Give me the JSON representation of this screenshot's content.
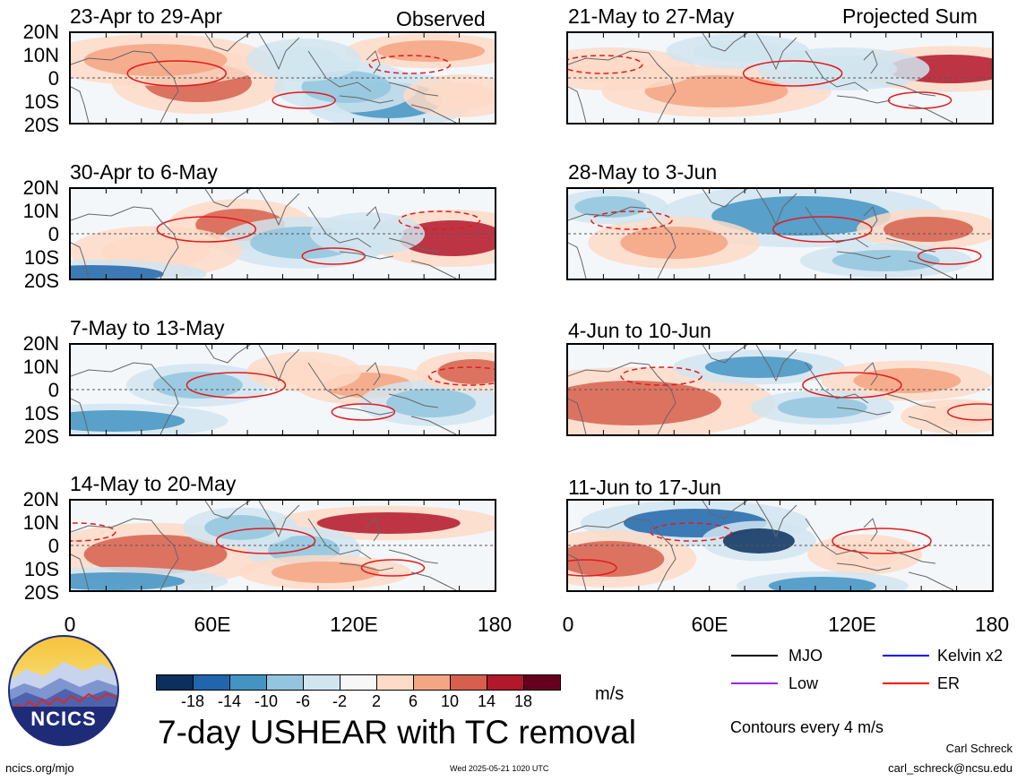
{
  "panels": {
    "observed": [
      {
        "title": "23-Apr to 29-Apr",
        "tag": "Observed"
      },
      {
        "title": "30-Apr to 6-May"
      },
      {
        "title": "7-May to 13-May"
      },
      {
        "title": "14-May to 20-May"
      }
    ],
    "projected": [
      {
        "title": "21-May to 27-May",
        "tag": "Projected Sum"
      },
      {
        "title": "28-May to 3-Jun"
      },
      {
        "title": "4-Jun to 10-Jun"
      },
      {
        "title": "11-Jun to 17-Jun"
      }
    ]
  },
  "axes": {
    "lat_labels": [
      "20N",
      "10N",
      "0",
      "10S",
      "20S"
    ],
    "lon_labels": [
      "0",
      "60E",
      "120E",
      "180"
    ]
  },
  "colorbar": {
    "colors": [
      "#0b2f5e",
      "#2166ac",
      "#4393c3",
      "#92c5de",
      "#d1e5f0",
      "#f7f7f7",
      "#fddbc7",
      "#f4a582",
      "#d6604d",
      "#b2182b",
      "#67001f"
    ],
    "tick_labels": [
      "-18",
      "-14",
      "-10",
      "-6",
      "-2",
      "2",
      "6",
      "10",
      "14",
      "18"
    ],
    "unit": "m/s"
  },
  "legend": {
    "items": [
      {
        "label": "MJO",
        "color": "#000000"
      },
      {
        "label": "Kelvin x2",
        "color": "#0000ff"
      },
      {
        "label": "Low",
        "color": "#a020f0"
      },
      {
        "label": "ER",
        "color": "#ff0000"
      }
    ],
    "contour_note": "Contours every 4 m/s"
  },
  "footer": {
    "title": "7-day USHEAR with TC removal",
    "logo_text": "NCICS",
    "url": "ncics.org/mjo",
    "timestamp": "Wed 2025-05-21 1020 UTC",
    "author": "Carl Schreck",
    "email": "carl_schreck@ncsu.edu"
  }
}
